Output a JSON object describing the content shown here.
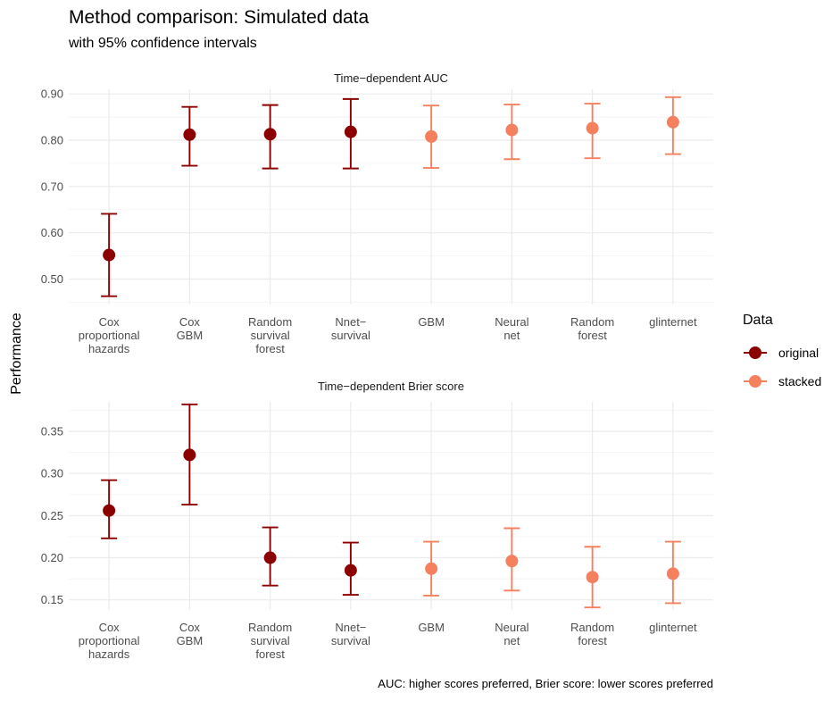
{
  "title": "Method comparison: Simulated data",
  "subtitle": "with 95% confidence intervals",
  "ylabel": "Performance",
  "caption": "AUC: higher scores preferred, Brier score: lower scores preferred",
  "legend": {
    "title": "Data",
    "items": [
      {
        "label": "original",
        "color": "#8B0000"
      },
      {
        "label": "stacked",
        "color": "#F4805E"
      }
    ]
  },
  "chart_data": [
    {
      "type": "scatter",
      "strip_title": "Time−dependent AUC",
      "categories": [
        [
          "Cox",
          "proportional",
          "hazards"
        ],
        [
          "Cox",
          "GBM"
        ],
        [
          "Random",
          "survival",
          "forest"
        ],
        [
          "Nnet−",
          "survival"
        ],
        [
          "GBM"
        ],
        [
          "Neural",
          "net"
        ],
        [
          "Random",
          "forest"
        ],
        [
          "glinternet"
        ]
      ],
      "groups": [
        "original",
        "original",
        "original",
        "original",
        "stacked",
        "stacked",
        "stacked",
        "stacked"
      ],
      "values": [
        0.552,
        0.812,
        0.813,
        0.818,
        0.808,
        0.822,
        0.826,
        0.839
      ],
      "lower": [
        0.463,
        0.745,
        0.739,
        0.739,
        0.74,
        0.759,
        0.761,
        0.77
      ],
      "upper": [
        0.641,
        0.872,
        0.876,
        0.889,
        0.875,
        0.877,
        0.879,
        0.893
      ],
      "yticks": [
        "0.50",
        "0.60",
        "0.70",
        "0.80",
        "0.90"
      ],
      "ylim": [
        0.445,
        0.91
      ]
    },
    {
      "type": "scatter",
      "strip_title": "Time−dependent Brier score",
      "categories": [
        [
          "Cox",
          "proportional",
          "hazards"
        ],
        [
          "Cox",
          "GBM"
        ],
        [
          "Random",
          "survival",
          "forest"
        ],
        [
          "Nnet−",
          "survival"
        ],
        [
          "GBM"
        ],
        [
          "Neural",
          "net"
        ],
        [
          "Random",
          "forest"
        ],
        [
          "glinternet"
        ]
      ],
      "groups": [
        "original",
        "original",
        "original",
        "original",
        "stacked",
        "stacked",
        "stacked",
        "stacked"
      ],
      "values": [
        0.256,
        0.322,
        0.2,
        0.185,
        0.187,
        0.196,
        0.177,
        0.181
      ],
      "lower": [
        0.223,
        0.263,
        0.167,
        0.156,
        0.155,
        0.161,
        0.141,
        0.146
      ],
      "upper": [
        0.292,
        0.382,
        0.236,
        0.218,
        0.219,
        0.235,
        0.213,
        0.219
      ],
      "yticks": [
        "0.15",
        "0.20",
        "0.25",
        "0.30",
        "0.35"
      ],
      "ylim": [
        0.138,
        0.385
      ]
    }
  ]
}
